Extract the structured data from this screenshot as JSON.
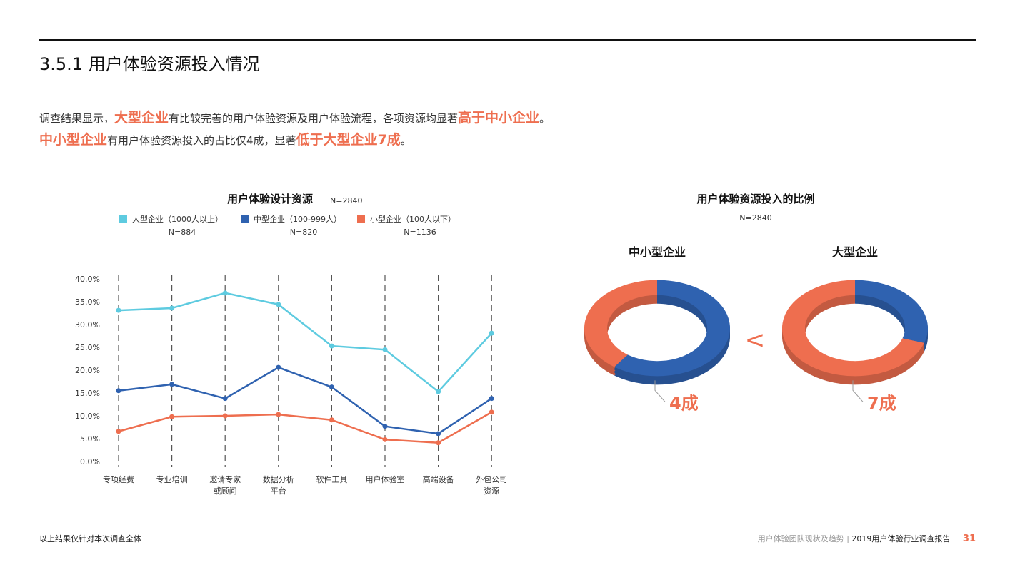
{
  "header": {
    "title": "3.5.1 用户体验资源投入情况"
  },
  "intro": {
    "line1": [
      "调查结果显示，",
      "大型企业",
      "有比较完善的用户体验资源及用户体验流程，各项资源均显著",
      "高于中小企业",
      "。"
    ],
    "line2": [
      "中小型企业",
      "有用户体验资源投入的占比仅4成，显著",
      "低于大型企业7成",
      "。"
    ]
  },
  "colors": {
    "large": "#5ecbe0",
    "medium": "#2f62b0",
    "small": "#ee6e4f",
    "accent": "#ee6e4f"
  },
  "chart_data": [
    {
      "type": "line",
      "title": "用户体验设计资源",
      "subtitle": "N=2840",
      "categories": [
        "专项经费",
        "专业培训",
        "邀请专家\n或顾问",
        "数据分析\n平台",
        "软件工具",
        "用户体验室",
        "高端设备",
        "外包公司\n资源"
      ],
      "yticks": [
        "0.0%",
        "5.0%",
        "10.0%",
        "15.0%",
        "20.0%",
        "25.0%",
        "30.0%",
        "35.0%",
        "40.0%"
      ],
      "ylim": [
        0,
        40
      ],
      "grid": "vertical dashed",
      "legend": "top",
      "series": [
        {
          "name": "大型企业（1000人以上）",
          "n": "N=884",
          "color": "#5ecbe0",
          "values": [
            33.1,
            33.6,
            36.9,
            34.4,
            25.3,
            24.5,
            15.3,
            28.1
          ]
        },
        {
          "name": "中型企业（100-999人）",
          "n": "N=820",
          "color": "#2f62b0",
          "values": [
            15.5,
            16.9,
            13.8,
            20.6,
            16.3,
            7.7,
            6.1,
            13.8
          ]
        },
        {
          "name": "小型企业（100人以下）",
          "n": "N=1136",
          "color": "#ee6e4f",
          "values": [
            6.6,
            9.8,
            10.0,
            10.3,
            9.1,
            4.8,
            4.1,
            10.8
          ]
        }
      ]
    },
    {
      "type": "pie",
      "title": "用户体验资源投入的比例",
      "subtitle": "N=2840",
      "comparator": "<",
      "pies": [
        {
          "name": "中小型企业",
          "label": "4成",
          "values": [
            {
              "share": 0.4,
              "color": "#ee6e4f"
            },
            {
              "share": 0.6,
              "color": "#2f62b0"
            }
          ]
        },
        {
          "name": "大型企业",
          "label": "7成",
          "values": [
            {
              "share": 0.7,
              "color": "#ee6e4f"
            },
            {
              "share": 0.3,
              "color": "#2f62b0"
            }
          ]
        }
      ]
    }
  ],
  "footer": {
    "note": "以上结果仅针对本次调查全体",
    "report_section": "用户体验团队现状及趋势",
    "separator": "|",
    "report_title": "2019用户体验行业调查报告",
    "page": "31"
  }
}
